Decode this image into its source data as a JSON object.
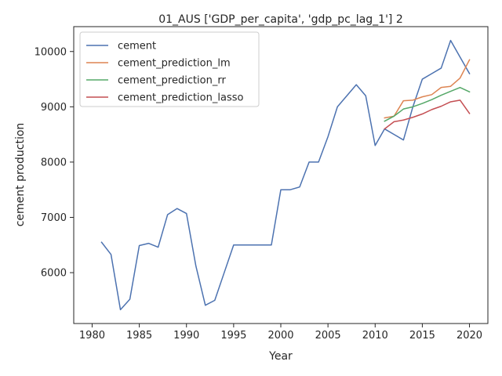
{
  "chart_data": {
    "type": "line",
    "title": "01_AUS ['GDP_per_capita', 'gdp_pc_lag_1'] 2",
    "xlabel": "Year",
    "ylabel": "cement production",
    "xlim": [
      1978.05,
      2021.95
    ],
    "ylim": [
      5080,
      10450
    ],
    "xticks": [
      1980,
      1985,
      1990,
      1995,
      2000,
      2005,
      2010,
      2015,
      2020
    ],
    "yticks": [
      6000,
      7000,
      8000,
      9000,
      10000
    ],
    "grid": false,
    "legend_position": "top-left",
    "series": [
      {
        "name": "cement",
        "color": "#4c72b0",
        "x": [
          1981,
          1982,
          1983,
          1984,
          1985,
          1986,
          1987,
          1988,
          1989,
          1990,
          1991,
          1992,
          1993,
          1994,
          1995,
          1996,
          1997,
          1998,
          1999,
          2000,
          2001,
          2002,
          2003,
          2004,
          2005,
          2006,
          2007,
          2008,
          2009,
          2010,
          2011,
          2012,
          2013,
          2014,
          2015,
          2016,
          2017,
          2018,
          2019,
          2020
        ],
        "y": [
          6550,
          6330,
          5330,
          5520,
          6490,
          6530,
          6460,
          7050,
          7160,
          7070,
          6120,
          5410,
          5500,
          6000,
          6500,
          6500,
          6500,
          6500,
          6500,
          7500,
          7500,
          7550,
          8000,
          8000,
          8460,
          9000,
          9200,
          9400,
          9200,
          8300,
          8600,
          8500,
          8400,
          9000,
          9500,
          9600,
          9700,
          10200,
          9900,
          9600
        ]
      },
      {
        "name": "cement_prediction_lm",
        "color": "#dd8452",
        "x": [
          2011,
          2012,
          2013,
          2014,
          2015,
          2016,
          2017,
          2018,
          2019,
          2020
        ],
        "y": [
          8800,
          8830,
          9110,
          9120,
          9180,
          9220,
          9350,
          9370,
          9520,
          9850
        ]
      },
      {
        "name": "cement_prediction_rr",
        "color": "#55a868",
        "x": [
          2011,
          2012,
          2013,
          2014,
          2015,
          2016,
          2017,
          2018,
          2019,
          2020
        ],
        "y": [
          8740,
          8830,
          8960,
          9000,
          9060,
          9130,
          9210,
          9280,
          9350,
          9270
        ]
      },
      {
        "name": "cement_prediction_lasso",
        "color": "#c44e52",
        "x": [
          2011,
          2012,
          2013,
          2014,
          2015,
          2016,
          2017,
          2018,
          2019,
          2020
        ],
        "y": [
          8600,
          8730,
          8760,
          8810,
          8870,
          8950,
          9010,
          9090,
          9120,
          8880
        ]
      }
    ]
  }
}
